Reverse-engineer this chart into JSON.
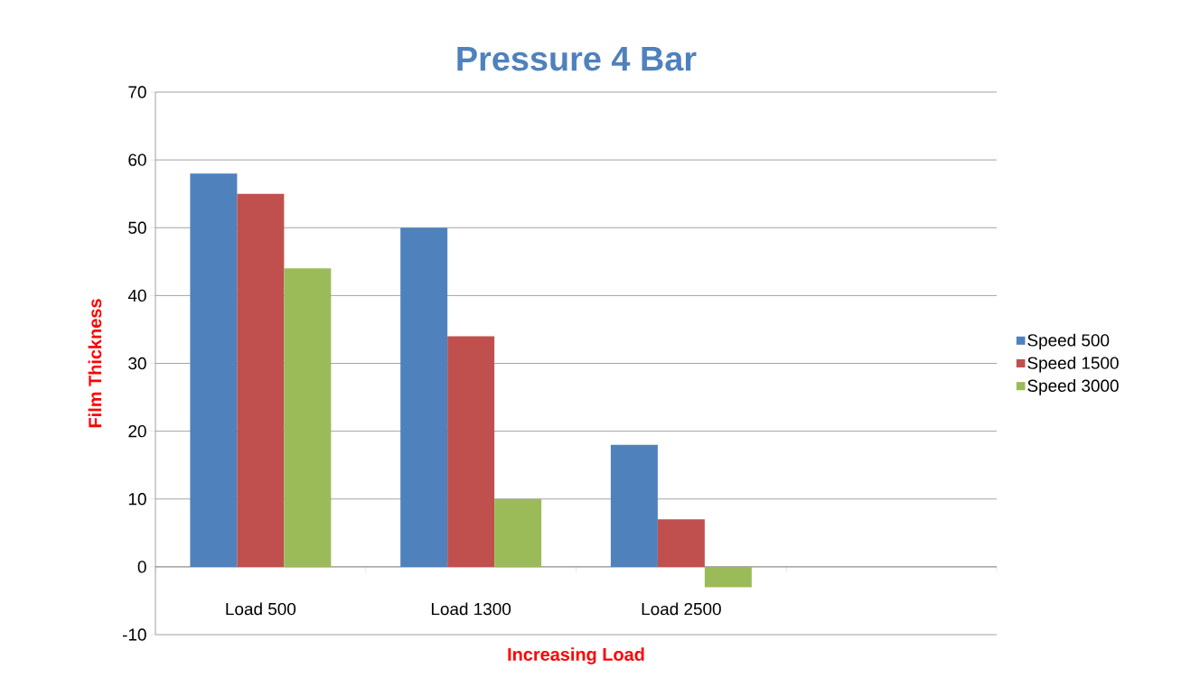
{
  "chart_data": {
    "type": "bar",
    "title": "Pressure 4 Bar",
    "xlabel": "Increasing Load",
    "ylabel": "Film Thickness",
    "categories": [
      "Load 500",
      "Load 1300",
      "Load 2500",
      null
    ],
    "series": [
      {
        "name": "Speed 500",
        "color": "#4f81bd",
        "values": [
          58,
          50,
          18,
          null
        ]
      },
      {
        "name": "Speed 1500",
        "color": "#c0504d",
        "values": [
          55,
          34,
          7,
          null
        ]
      },
      {
        "name": "Speed 3000",
        "color": "#9bbb59",
        "values": [
          44,
          10,
          -3,
          null
        ]
      }
    ],
    "ylim": [
      -10,
      70
    ],
    "yticks": [
      -10,
      0,
      10,
      20,
      30,
      40,
      50,
      60,
      70
    ],
    "grid": "y",
    "legend": "right"
  }
}
